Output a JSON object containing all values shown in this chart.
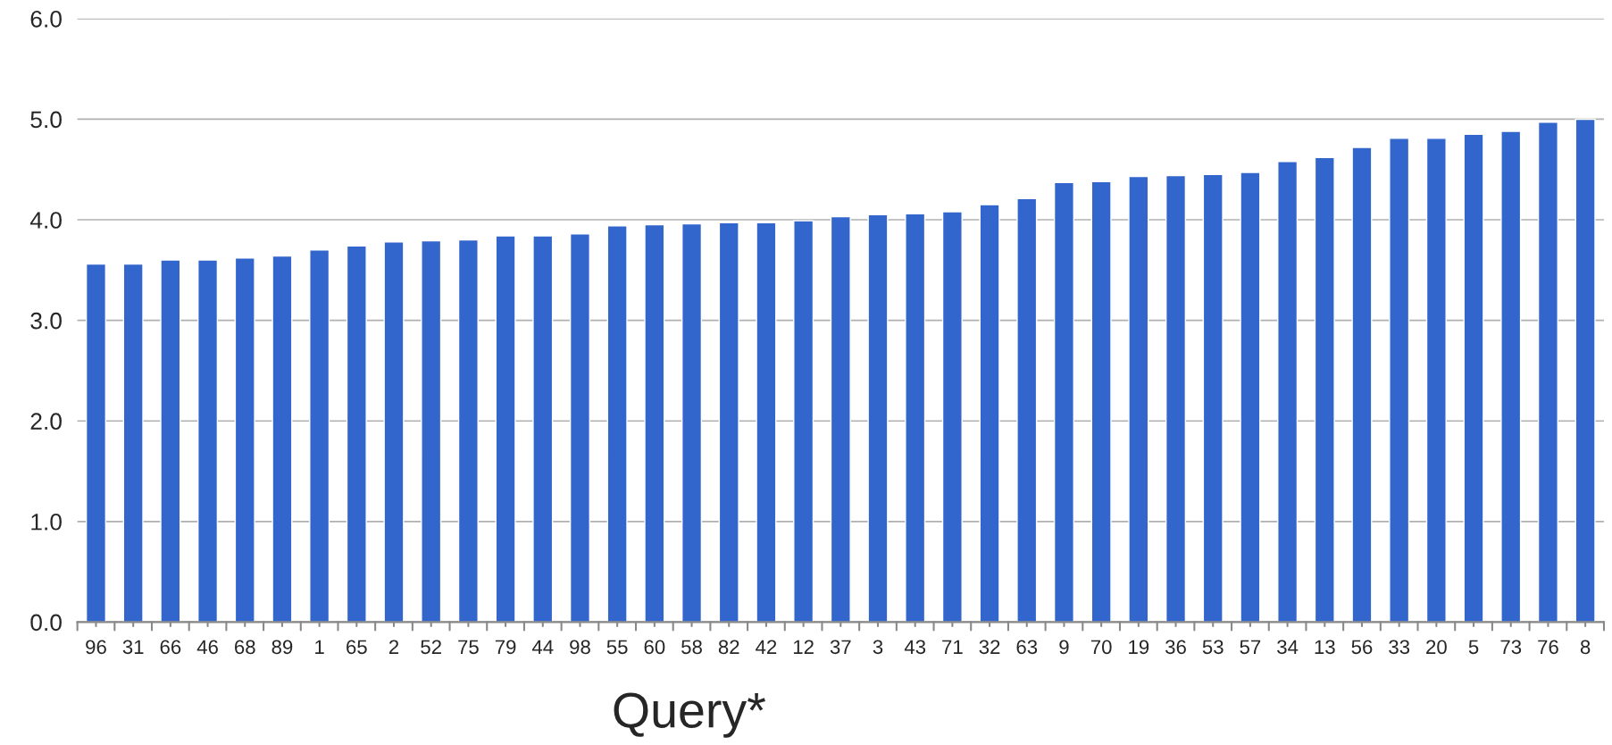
{
  "chart_data": {
    "type": "bar",
    "xlabel": "Query*",
    "categories": [
      "96",
      "31",
      "66",
      "46",
      "68",
      "89",
      "1",
      "65",
      "2",
      "52",
      "75",
      "79",
      "44",
      "98",
      "55",
      "60",
      "58",
      "82",
      "42",
      "12",
      "37",
      "3",
      "43",
      "71",
      "32",
      "63",
      "9",
      "70",
      "19",
      "36",
      "53",
      "57",
      "34",
      "13",
      "56",
      "33",
      "20",
      "5",
      "73",
      "76",
      "8"
    ],
    "values": [
      3.56,
      3.56,
      3.6,
      3.6,
      3.62,
      3.64,
      3.7,
      3.74,
      3.78,
      3.79,
      3.8,
      3.84,
      3.84,
      3.86,
      3.94,
      3.95,
      3.96,
      3.97,
      3.97,
      3.99,
      4.03,
      4.05,
      4.06,
      4.08,
      4.15,
      4.21,
      4.37,
      4.38,
      4.43,
      4.44,
      4.45,
      4.47,
      4.58,
      4.62,
      4.72,
      4.81,
      4.81,
      4.85,
      4.88,
      4.97,
      5.0
    ],
    "color": "#3366cc",
    "ylim": [
      0,
      6
    ],
    "yticks": [
      {
        "value": 0,
        "label": "0.0"
      },
      {
        "value": 1,
        "label": "1.0"
      },
      {
        "value": 2,
        "label": "2.0"
      },
      {
        "value": 3,
        "label": "3.0"
      },
      {
        "value": 4,
        "label": "4.0"
      },
      {
        "value": 5,
        "label": "5.0"
      },
      {
        "value": 6,
        "label": "6.0"
      }
    ],
    "grid": "y"
  }
}
